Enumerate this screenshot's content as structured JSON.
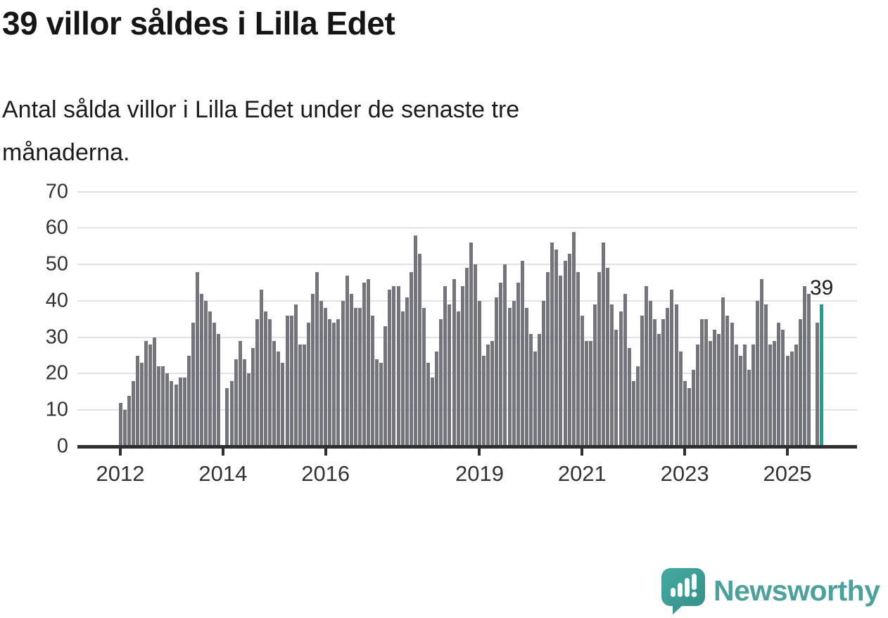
{
  "header": {
    "title": "39 villor såldes i Lilla Edet",
    "subtitle_lines": [
      "Antal sålda villor i Lilla Edet under de senaste tre",
      "månaderna."
    ]
  },
  "chart_data": {
    "type": "bar",
    "title": "39 villor såldes i Lilla Edet",
    "xlabel": "",
    "ylabel": "",
    "frequency": "monthly",
    "x_start": "2012-01",
    "x_end": "2025-09",
    "ylim": [
      0,
      70
    ],
    "grid": "horizontal",
    "legend": "none",
    "y_ticks": [
      0,
      10,
      20,
      30,
      40,
      50,
      60,
      70
    ],
    "x_tick_years": [
      2012,
      2014,
      2016,
      2019,
      2021,
      2023,
      2025
    ],
    "gap_months": [
      "2014-01",
      "2025-07"
    ],
    "values": [
      12,
      10,
      14,
      18,
      25,
      23,
      29,
      28,
      30,
      22,
      22,
      20,
      18,
      17,
      19,
      19,
      25,
      34,
      48,
      42,
      40,
      37,
      34,
      31,
      0,
      16,
      18,
      24,
      29,
      24,
      20,
      27,
      35,
      43,
      37,
      35,
      29,
      26,
      23,
      36,
      36,
      39,
      28,
      28,
      34,
      42,
      48,
      40,
      38,
      35,
      34,
      35,
      40,
      47,
      42,
      38,
      38,
      45,
      46,
      36,
      24,
      23,
      33,
      43,
      44,
      44,
      37,
      41,
      48,
      58,
      53,
      38,
      23,
      19,
      26,
      35,
      44,
      39,
      46,
      37,
      44,
      49,
      56,
      50,
      40,
      25,
      28,
      29,
      41,
      45,
      50,
      38,
      40,
      45,
      51,
      38,
      31,
      26,
      31,
      40,
      48,
      56,
      54,
      47,
      51,
      53,
      59,
      48,
      36,
      29,
      29,
      39,
      48,
      56,
      49,
      39,
      32,
      37,
      42,
      27,
      18,
      22,
      36,
      44,
      40,
      35,
      31,
      35,
      38,
      43,
      39,
      26,
      18,
      16,
      21,
      28,
      35,
      35,
      29,
      32,
      31,
      41,
      36,
      34,
      28,
      25,
      28,
      21,
      28,
      40,
      46,
      39,
      28,
      29,
      34,
      32,
      25,
      26,
      28,
      35,
      44,
      42,
      0,
      34,
      39
    ],
    "highlight": {
      "index": 164,
      "month": "2025-09",
      "value": 39,
      "label": "39"
    }
  },
  "colors": {
    "bar": "#74747c",
    "highlight_bar": "#17a398",
    "grid": "#e3e3e3",
    "axis": "#2f2f2f",
    "tick_label": "#333333",
    "value_label": "#1f1f1f",
    "logo_text": "#4BA19B",
    "logo_bubble_top": "#44aaa2",
    "logo_bubble_bottom": "#338f88"
  },
  "footer": {
    "brand": "Newsworthy",
    "logo_icon": "newsworthy-bubble-chart-icon"
  }
}
